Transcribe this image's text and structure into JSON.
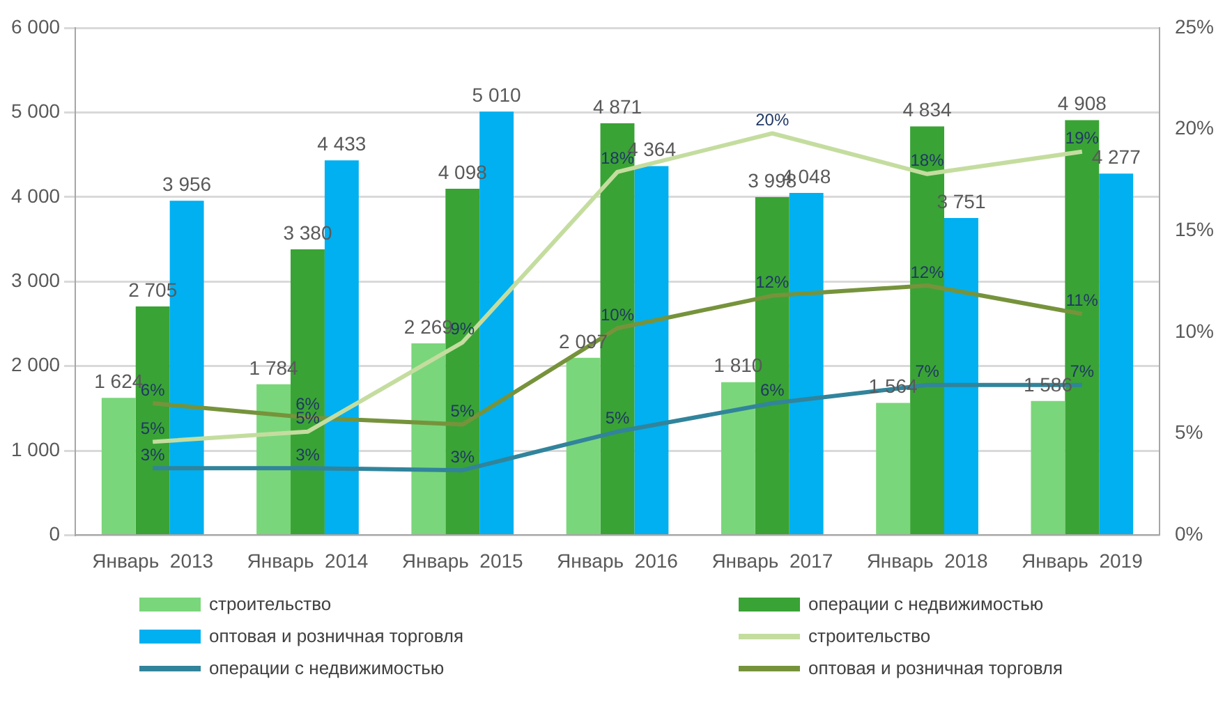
{
  "chart_data": {
    "type": "bar",
    "categories": [
      "Январь  2013",
      "Январь  2014",
      "Январь  2015",
      "Январь  2016",
      "Январь  2017",
      "Январь  2018",
      "Январь  2019"
    ],
    "series": [
      {
        "name": "строительство",
        "color": "#7ad67a",
        "values": [
          1624,
          1784,
          2269,
          2097,
          1810,
          1564,
          1586
        ],
        "value_labels": [
          "1 624",
          "1 784",
          "2 269",
          "2 097",
          "1 810",
          "1 564",
          "1 586"
        ]
      },
      {
        "name": "операции  с недвижимостью",
        "color": "#3aa335",
        "values": [
          2705,
          3380,
          4098,
          4871,
          3998,
          4834,
          4908
        ],
        "value_labels": [
          "2 705",
          "3 380",
          "4 098",
          "4 871",
          "3 998",
          "4 834",
          "4 908"
        ]
      },
      {
        "name": "оптовая  и розничная  торговля",
        "color": "#00b0f0",
        "values": [
          3956,
          4433,
          5010,
          4364,
          4048,
          3751,
          4277
        ],
        "value_labels": [
          "3 956",
          "4 433",
          "5 010",
          "4 364",
          "4 048",
          "3 751",
          "4 277"
        ]
      },
      {
        "name": "строительство",
        "type": "line",
        "axis": "y2",
        "color": "#c4dd9f",
        "values": [
          4.6,
          5.1,
          9.5,
          17.9,
          19.8,
          17.8,
          18.9
        ],
        "value_labels": [
          "5%",
          "5%",
          "9%",
          "18%",
          "20%",
          "18%",
          "19%"
        ]
      },
      {
        "name": "операции  с недвижимостью",
        "type": "line",
        "axis": "y2",
        "color": "#31849b",
        "values": [
          3.3,
          3.3,
          3.2,
          5.1,
          6.5,
          7.4,
          7.4
        ],
        "value_labels": [
          "3%",
          "3%",
          "3%",
          "5%",
          "6%",
          "7%",
          "7%"
        ]
      },
      {
        "name": "оптовая  и розничная  торговля",
        "type": "line",
        "axis": "y2",
        "color": "#76933c",
        "values": [
          6.5,
          5.8,
          5.45,
          10.2,
          11.8,
          12.3,
          10.9
        ],
        "value_labels": [
          "6%",
          "6%",
          "5%",
          "10%",
          "12%",
          "12%",
          "11%"
        ]
      }
    ],
    "ylim": [
      0,
      6000
    ],
    "yticks": [
      {
        "value": 0,
        "label": "0"
      },
      {
        "value": 1000,
        "label": "1 000"
      },
      {
        "value": 2000,
        "label": "2 000"
      },
      {
        "value": 3000,
        "label": "3 000"
      },
      {
        "value": 4000,
        "label": "4 000"
      },
      {
        "value": 5000,
        "label": "5 000"
      },
      {
        "value": 6000,
        "label": "6 000"
      }
    ],
    "y2lim": [
      0,
      25
    ],
    "y2ticks": [
      {
        "value": 0,
        "label": "0%"
      },
      {
        "value": 5,
        "label": "5%"
      },
      {
        "value": 10,
        "label": "10%"
      },
      {
        "value": 15,
        "label": "15%"
      },
      {
        "value": 20,
        "label": "20%"
      },
      {
        "value": 25,
        "label": "25%"
      }
    ],
    "grid": "y",
    "legend": "bottom",
    "marker": "none"
  }
}
